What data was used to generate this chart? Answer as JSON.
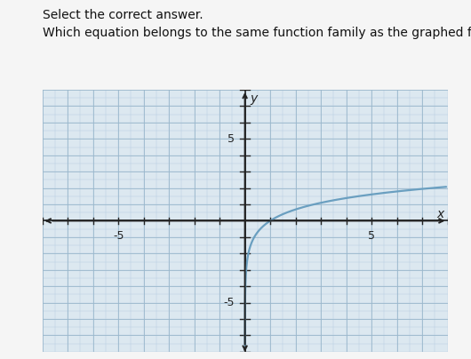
{
  "outer_bg_color": "#f0f0f0",
  "plot_bg_color": "#dce8f0",
  "grid_minor_color": "#b8cfe0",
  "grid_major_color": "#9ab8cc",
  "axis_color": "#222222",
  "curve_color": "#6a9fc0",
  "curve_linewidth": 1.6,
  "xlim": [
    -8,
    8
  ],
  "ylim": [
    -8,
    8
  ],
  "xlabel": "x",
  "ylabel": "y",
  "title1": "Select the correct answer.",
  "title2": "Which equation belongs to the same function family as the graphed function?",
  "title1_fontsize": 10,
  "title2_fontsize": 10,
  "tick_label_fontsize": 9,
  "axis_label_fontsize": 10,
  "xtick_labeled": [
    -5,
    5
  ],
  "ytick_labeled": [
    -5,
    5
  ]
}
